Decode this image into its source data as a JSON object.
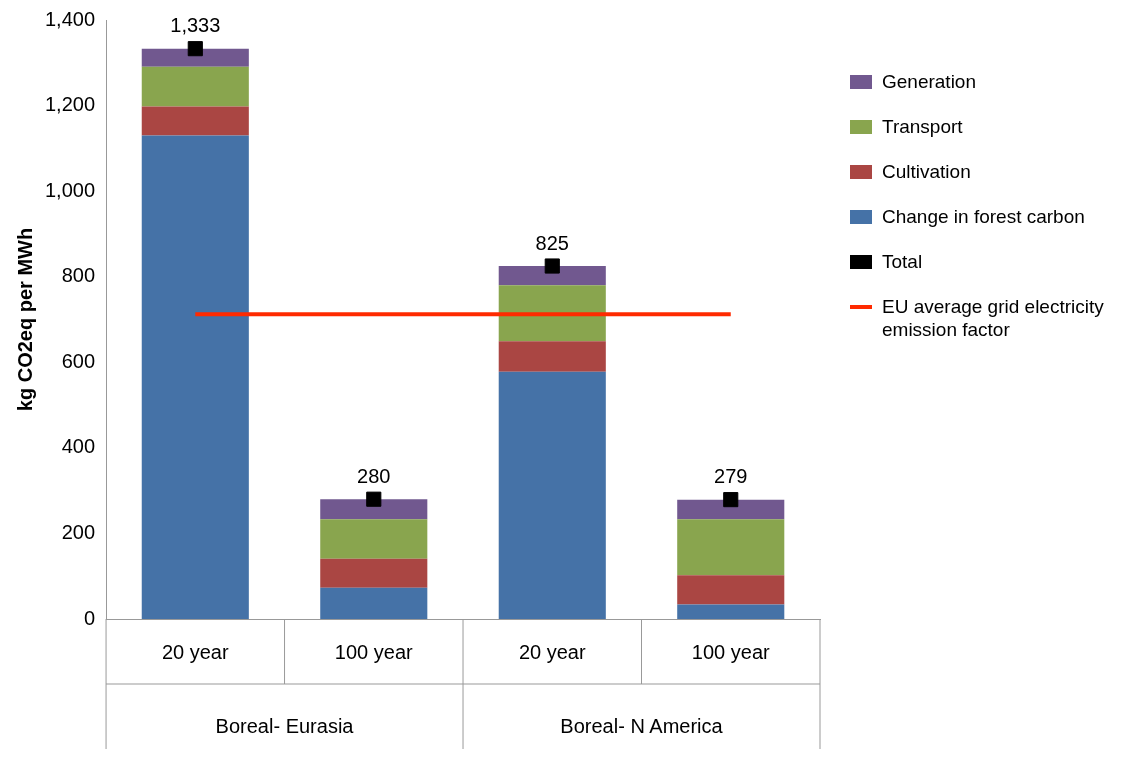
{
  "chart_data": {
    "type": "bar",
    "stacked": true,
    "ylabel": "kg CO2eq per MWh",
    "categories": [
      "20 year",
      "100 year",
      "20 year",
      "100 year"
    ],
    "annotations": [
      "Boreal- Eurasia",
      "Boreal- N America"
    ],
    "series": [
      {
        "name": "Change in forest carbon",
        "color": "#4572a7",
        "values": [
          1130,
          73,
          578,
          34
        ]
      },
      {
        "name": "Cultivation",
        "color": "#aa4643",
        "values": [
          68,
          68,
          71,
          68
        ]
      },
      {
        "name": "Transport",
        "color": "#89a54e",
        "values": [
          93,
          92,
          131,
          131
        ]
      },
      {
        "name": "Generation",
        "color": "#71588f",
        "values": [
          42,
          47,
          45,
          46
        ]
      },
      {
        "name": "Total",
        "type": "scatter",
        "color": "#000000",
        "marker": "square",
        "values": [
          1333,
          280,
          825,
          279
        ],
        "value_labels": [
          "1,333",
          "280",
          "825",
          "279"
        ]
      },
      {
        "name": "EU average grid electricity emission factor",
        "type": "line",
        "color": "#ff2a00",
        "marker": "none",
        "line_style": "solid",
        "values": [
          712,
          712,
          712,
          712
        ]
      }
    ],
    "ylim": [
      0,
      1400
    ],
    "yticks": [
      0,
      {
        "value": 200,
        "label": "200"
      },
      {
        "value": 400,
        "label": "400"
      },
      {
        "value": 600,
        "label": "600"
      },
      {
        "value": 800,
        "label": "800"
      },
      {
        "value": 1000,
        "label": "1,000"
      },
      {
        "value": 1200,
        "label": "1,200"
      },
      {
        "value": 1400,
        "label": "1,400"
      }
    ],
    "grid": false,
    "legend": "right"
  }
}
